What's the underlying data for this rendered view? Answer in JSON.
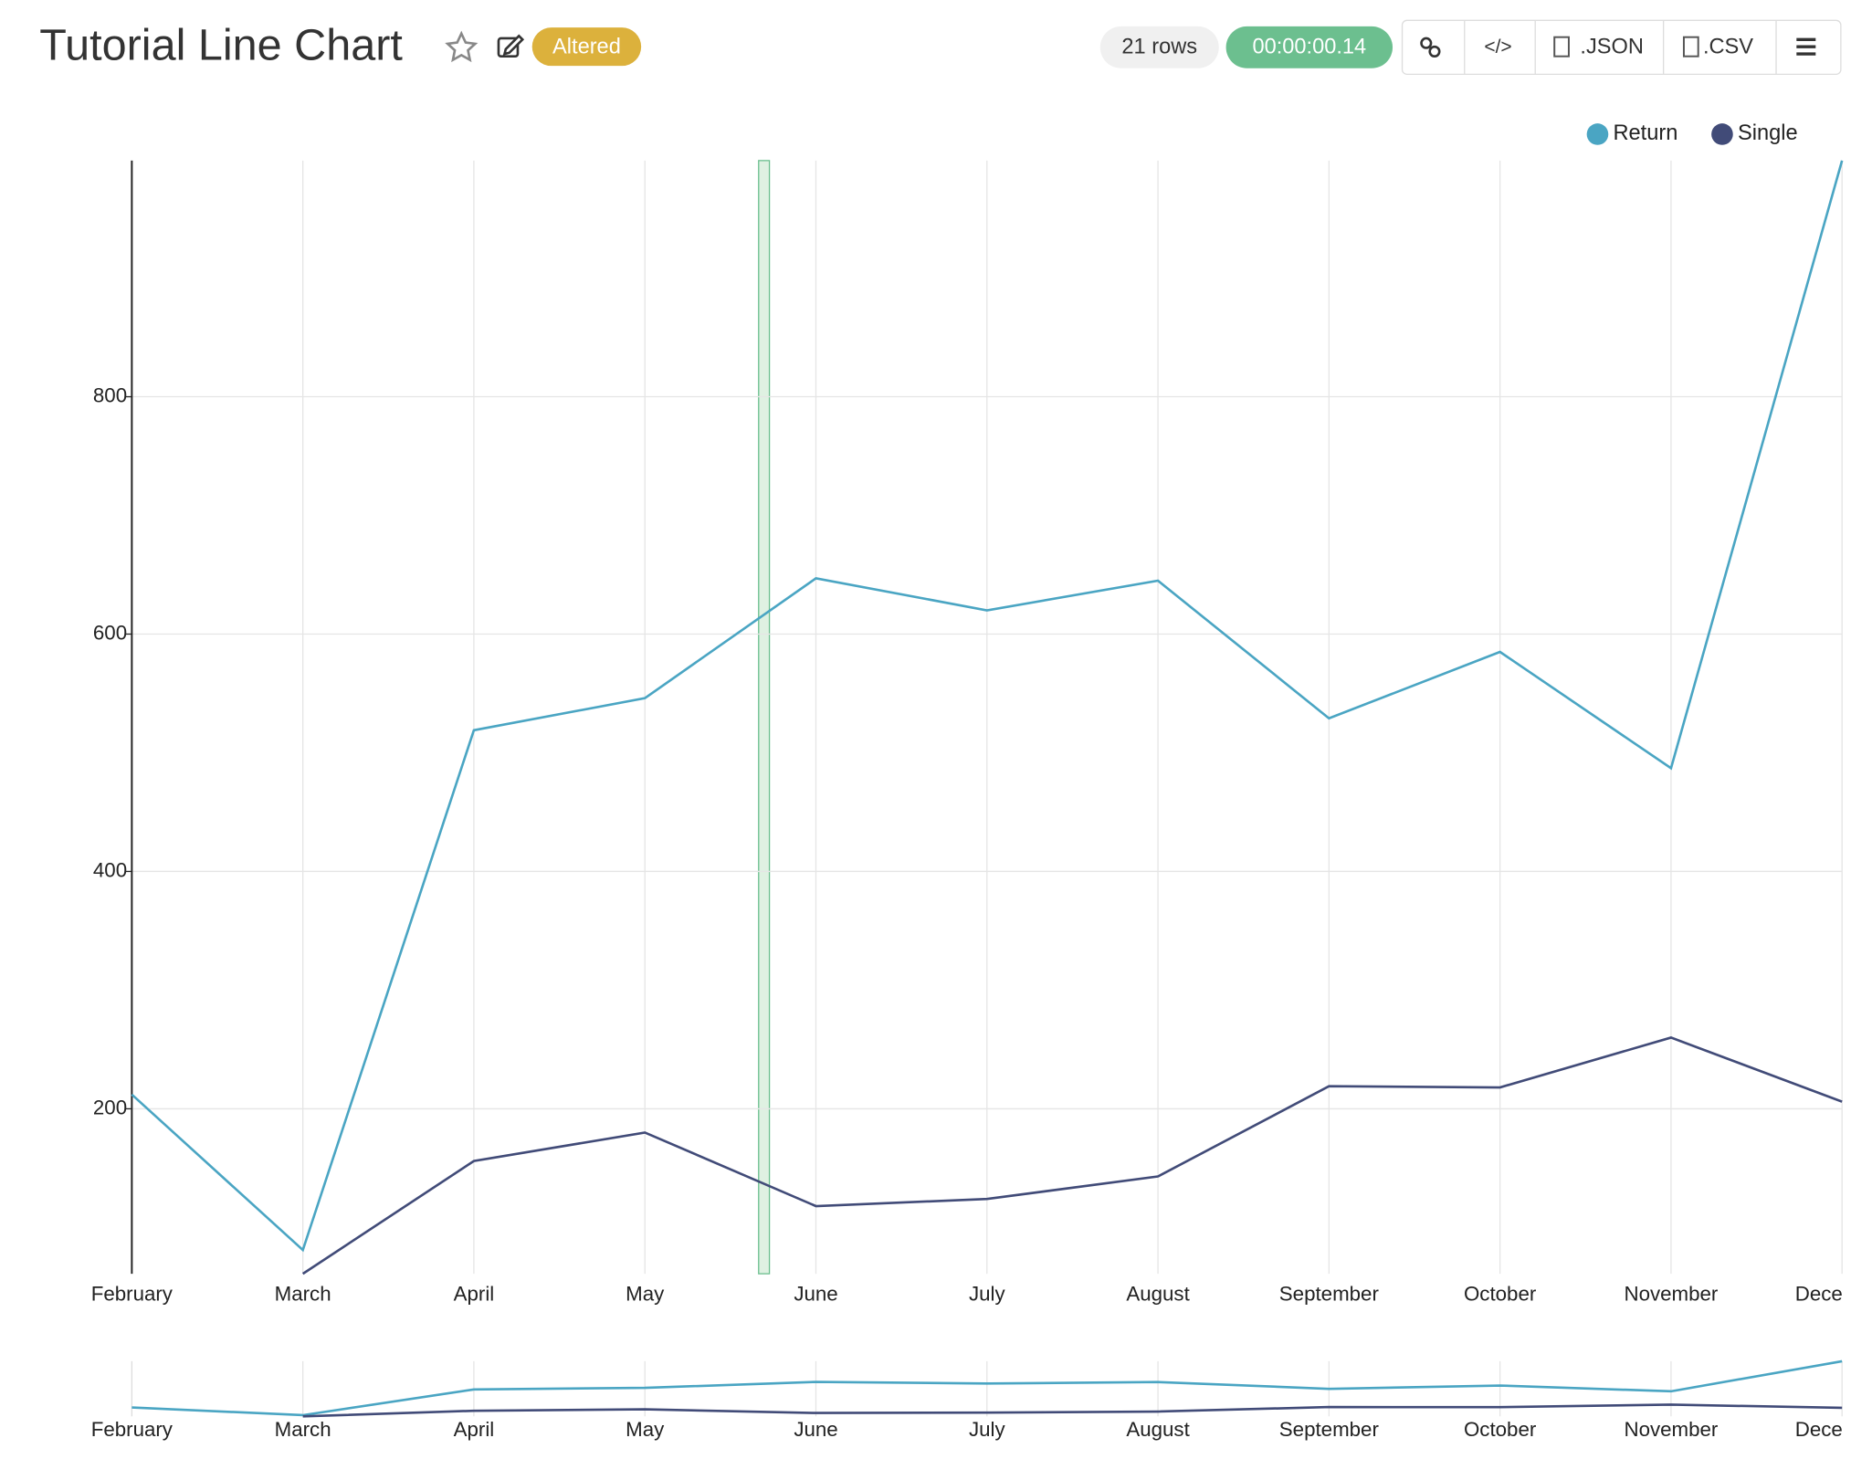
{
  "header": {
    "title": "Tutorial Line Chart",
    "badge": "Altered",
    "rows": "21 rows",
    "timer": "00:00:00.14",
    "json_button": ".JSON",
    "csv_button": ".CSV"
  },
  "chart_data": {
    "type": "line",
    "categories": [
      "February",
      "March",
      "April",
      "May",
      "June",
      "July",
      "August",
      "September",
      "October",
      "November",
      "December"
    ],
    "series": [
      {
        "name": "Return",
        "color": "#4aa5c3",
        "values": [
          212,
          81,
          519,
          546,
          647,
          620,
          645,
          529,
          585,
          487,
          999
        ]
      },
      {
        "name": "Single",
        "color": "#414b78",
        "values": [
          null,
          61,
          156,
          180,
          118,
          124,
          143,
          219,
          218,
          260,
          206
        ]
      }
    ],
    "ylim": [
      61,
      999
    ],
    "yticks": [
      200,
      400,
      600,
      800
    ],
    "grid": true,
    "legend": "top-right"
  }
}
